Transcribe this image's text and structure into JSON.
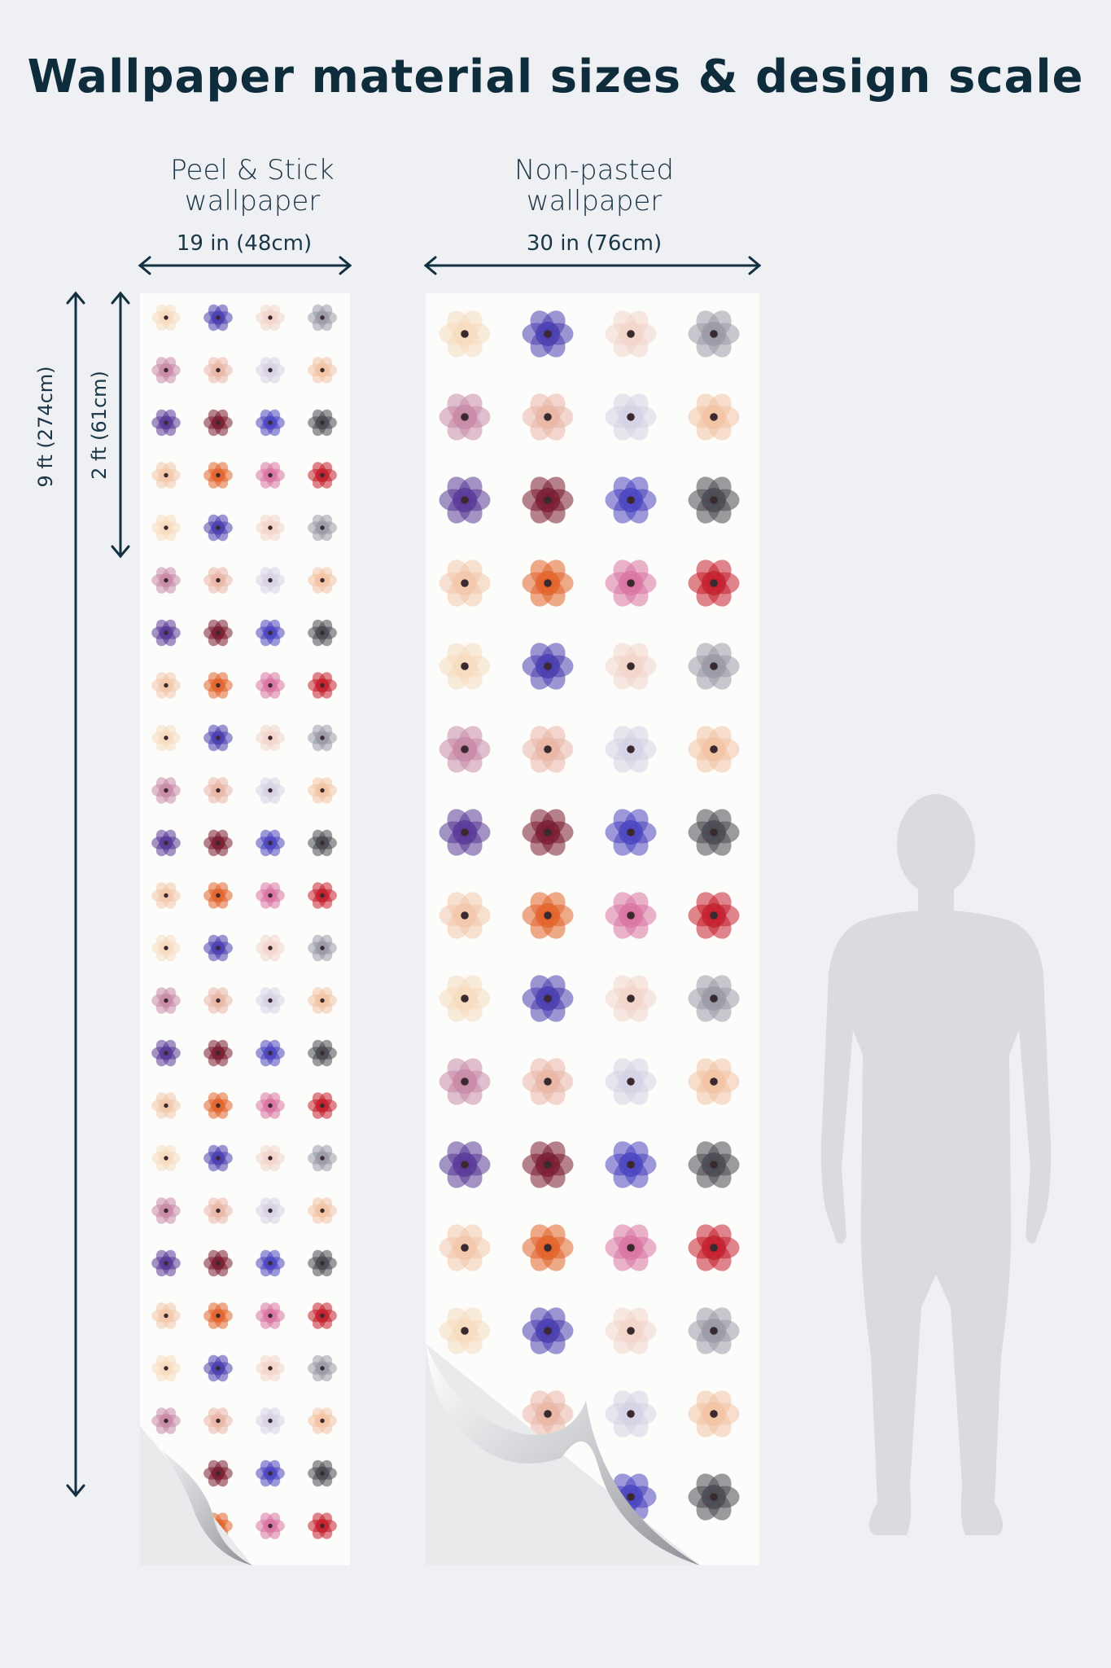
{
  "title": "Wallpaper material sizes & design scale",
  "peel_stick": {
    "heading_line1": "Peel & Stick",
    "heading_line2": "wallpaper",
    "width": "19 in (48cm)"
  },
  "non_pasted": {
    "heading_line1": "Non-pasted",
    "heading_line2": "wallpaper",
    "width": "30 in (76cm)"
  },
  "heights": {
    "full": "9 ft (274cm)",
    "repeat": "2 ft (61cm)"
  },
  "colors": {
    "background": "#eef0f4",
    "text": "#0f2c3c",
    "silhouette": "#d9dbe0",
    "paper": "#fcfcfb"
  },
  "flower_palette": [
    [
      "#f6dcc0",
      "#4a3fb0",
      "#f3d6cc",
      "#9a9aa8"
    ],
    [
      "#c88aa8",
      "#e9b7a8",
      "#d7d2e4",
      "#f2c3a4"
    ],
    [
      "#5a3a98",
      "#7a1e32",
      "#4c46c0",
      "#4a4a52"
    ],
    [
      "#f3c8ac",
      "#e2642c",
      "#d974a0",
      "#c4202e"
    ]
  ]
}
